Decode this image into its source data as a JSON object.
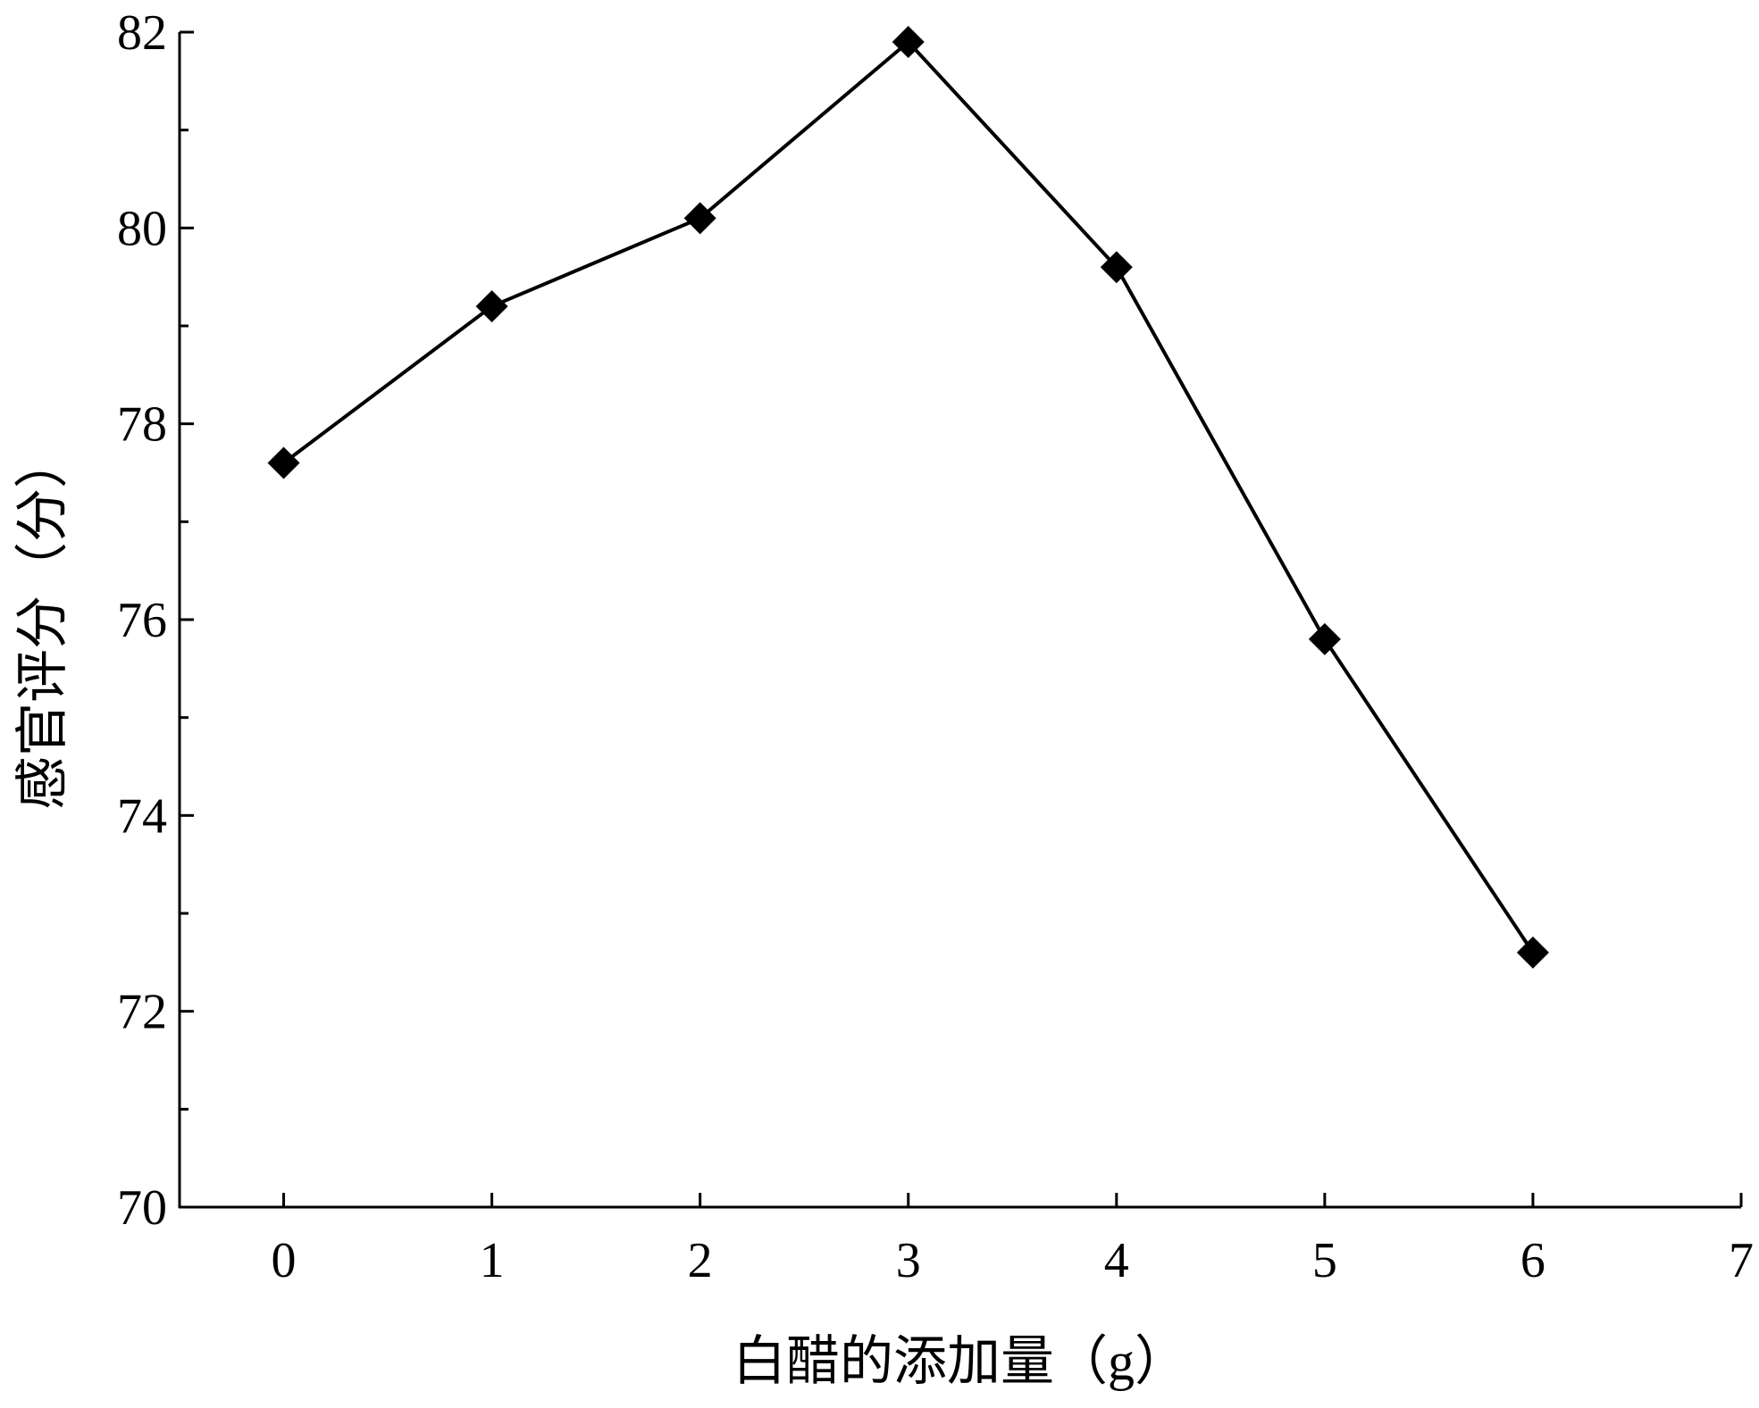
{
  "chart_data": {
    "type": "line",
    "xlabel": "白醋的添加量（g）",
    "ylabel": "感官评分（分）",
    "x": [
      0,
      1,
      2,
      3,
      4,
      5,
      6
    ],
    "series": [
      {
        "name": "感官评分",
        "color": "#000000",
        "values": [
          77.6,
          79.2,
          80.1,
          81.9,
          79.6,
          75.8,
          72.6
        ]
      }
    ],
    "xlim": [
      -0.5,
      7
    ],
    "xticks": [
      0,
      1,
      2,
      3,
      4,
      5,
      6,
      7
    ],
    "ylim": [
      70,
      82
    ],
    "yticks": [
      70,
      72,
      74,
      76,
      78,
      80,
      82
    ],
    "yminorticks": [
      71,
      73,
      75,
      77,
      79,
      81
    ],
    "grid": false,
    "legend": false,
    "marker": "diamond"
  }
}
